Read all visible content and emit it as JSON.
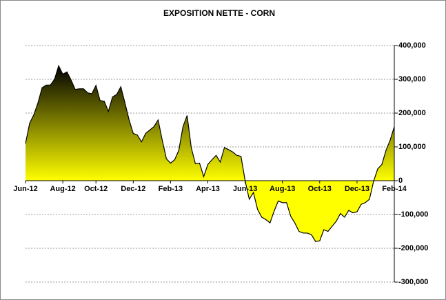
{
  "chart_data": {
    "type": "area",
    "title": "EXPOSITION NETTE - CORN",
    "categories": [
      "Jun-12",
      null,
      null,
      null,
      null,
      null,
      null,
      null,
      null,
      "Aug-12",
      null,
      null,
      null,
      null,
      null,
      null,
      null,
      "Oct-12",
      null,
      null,
      null,
      null,
      null,
      null,
      null,
      null,
      "Dec-12",
      null,
      null,
      null,
      null,
      null,
      null,
      null,
      null,
      "Feb-13",
      null,
      null,
      null,
      null,
      null,
      null,
      null,
      null,
      "Apr-13",
      null,
      null,
      null,
      null,
      null,
      null,
      null,
      null,
      "Jun-13",
      null,
      null,
      null,
      null,
      null,
      null,
      null,
      null,
      "Aug-13",
      null,
      null,
      null,
      null,
      null,
      null,
      null,
      null,
      "Oct-13",
      null,
      null,
      null,
      null,
      null,
      null,
      null,
      null,
      "Dec-13",
      null,
      null,
      null,
      null,
      null,
      null,
      null,
      null,
      "Feb-14"
    ],
    "values": [
      110000,
      170000,
      195000,
      230000,
      275000,
      283000,
      283000,
      300000,
      340000,
      315000,
      322000,
      298000,
      270000,
      272000,
      272000,
      260000,
      257000,
      282000,
      237000,
      235000,
      205000,
      248000,
      255000,
      278000,
      230000,
      180000,
      140000,
      135000,
      115000,
      140000,
      150000,
      160000,
      180000,
      120000,
      65000,
      52000,
      62000,
      90000,
      160000,
      193000,
      98000,
      50000,
      52000,
      12000,
      48000,
      62000,
      75000,
      55000,
      98000,
      92000,
      85000,
      75000,
      72000,
      0,
      -55000,
      -35000,
      -85000,
      -108000,
      -115000,
      -125000,
      -90000,
      -60000,
      -65000,
      -65000,
      -105000,
      -125000,
      -150000,
      -155000,
      -155000,
      -160000,
      -180000,
      -178000,
      -145000,
      -150000,
      -135000,
      -120000,
      -97000,
      -108000,
      -88000,
      -95000,
      -92000,
      -70000,
      -65000,
      -55000,
      -2000,
      35000,
      48000,
      90000,
      120000,
      160000
    ],
    "color": "#ffff00",
    "ylim": [
      -300000,
      400000
    ],
    "yticks": [
      {
        "value": -300000,
        "label": "-300,000"
      },
      {
        "value": -200000,
        "label": "-200,000"
      },
      {
        "value": -100000,
        "label": "-100,000"
      },
      0,
      {
        "value": 100000,
        "label": "100,000"
      },
      {
        "value": 200000,
        "label": "200,000"
      },
      {
        "value": 300000,
        "label": "300,000"
      },
      {
        "value": 400000,
        "label": "400,000"
      }
    ],
    "grid": true
  }
}
